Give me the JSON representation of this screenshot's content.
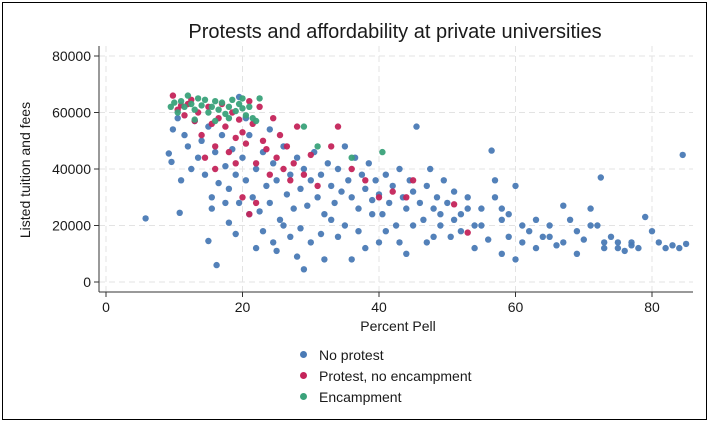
{
  "chart_data": {
    "type": "scatter",
    "title": "Protests and affordability at private universities",
    "xlabel": "Percent Pell",
    "ylabel": "Listed tuition and fees",
    "xlim": [
      0,
      85
    ],
    "ylim": [
      0,
      80000
    ],
    "x_ticks": [
      "0",
      "20",
      "40",
      "60",
      "80"
    ],
    "y_ticks": [
      "0",
      "20000",
      "40000",
      "60000",
      "80000"
    ],
    "grid": "horizontal and vertical dashed",
    "legend_position": "bottom",
    "series": [
      {
        "name": "No protest",
        "color": "#4a7ab5",
        "points": [
          [
            5.8,
            22500
          ],
          [
            9.2,
            45500
          ],
          [
            9.6,
            42500
          ],
          [
            9.8,
            54000
          ],
          [
            10.5,
            58000
          ],
          [
            11.0,
            36000
          ],
          [
            10.8,
            24500
          ],
          [
            11.5,
            52000
          ],
          [
            12.0,
            48000
          ],
          [
            12.5,
            40000
          ],
          [
            13.0,
            57000
          ],
          [
            13.5,
            44000
          ],
          [
            14.0,
            50000
          ],
          [
            14.5,
            38000
          ],
          [
            15.0,
            55000
          ],
          [
            15.5,
            30000
          ],
          [
            15.0,
            14500
          ],
          [
            16.0,
            46000
          ],
          [
            16.5,
            35000
          ],
          [
            16.2,
            6000
          ],
          [
            17.0,
            52000
          ],
          [
            17.5,
            41000
          ],
          [
            18.0,
            33000
          ],
          [
            18.0,
            21000
          ],
          [
            18.5,
            47000
          ],
          [
            19.0,
            38000
          ],
          [
            19.5,
            28000
          ],
          [
            20.0,
            44000
          ],
          [
            20.5,
            36000
          ],
          [
            21.0,
            52000
          ],
          [
            21.5,
            30000
          ],
          [
            22.0,
            40000
          ],
          [
            22.5,
            25000
          ],
          [
            22.0,
            12000
          ],
          [
            23.0,
            46000
          ],
          [
            23.5,
            34000
          ],
          [
            24.0,
            28000
          ],
          [
            24.5,
            42000
          ],
          [
            25.0,
            36000
          ],
          [
            25.5,
            22000
          ],
          [
            25.0,
            11000
          ],
          [
            26.0,
            48000
          ],
          [
            26.5,
            31000
          ],
          [
            27.0,
            38000
          ],
          [
            27.5,
            26000
          ],
          [
            28.0,
            44000
          ],
          [
            28.0,
            9000
          ],
          [
            28.5,
            33000
          ],
          [
            29.0,
            40000
          ],
          [
            29.5,
            27000
          ],
          [
            29.0,
            4500
          ],
          [
            30.0,
            36000
          ],
          [
            30.5,
            46000
          ],
          [
            31.0,
            30000
          ],
          [
            31.5,
            38000
          ],
          [
            32.0,
            24000
          ],
          [
            32.0,
            8000
          ],
          [
            32.5,
            42000
          ],
          [
            33.0,
            34000
          ],
          [
            33.5,
            28000
          ],
          [
            34.0,
            40000
          ],
          [
            34.5,
            32000
          ],
          [
            35.0,
            48000
          ],
          [
            35.0,
            20000
          ],
          [
            35.5,
            36000
          ],
          [
            36.0,
            30000
          ],
          [
            36.5,
            44000
          ],
          [
            37.0,
            26000
          ],
          [
            37.5,
            38000
          ],
          [
            38.0,
            33000
          ],
          [
            38.0,
            12000
          ],
          [
            38.5,
            42000
          ],
          [
            39.0,
            29000
          ],
          [
            39.5,
            36000
          ],
          [
            40.0,
            31000
          ],
          [
            40.5,
            24000
          ],
          [
            41.0,
            38000
          ],
          [
            41.5,
            28000
          ],
          [
            42.0,
            34000
          ],
          [
            42.5,
            20000
          ],
          [
            43.0,
            40000
          ],
          [
            43.5,
            30000
          ],
          [
            44.0,
            26000
          ],
          [
            44.5,
            36000
          ],
          [
            45.0,
            32000
          ],
          [
            45.5,
            55000
          ],
          [
            46.0,
            28000
          ],
          [
            46.5,
            22000
          ],
          [
            47.0,
            34000
          ],
          [
            47.5,
            40000
          ],
          [
            48.0,
            26000
          ],
          [
            48.5,
            30000
          ],
          [
            49.0,
            20000
          ],
          [
            49.5,
            36000
          ],
          [
            50.0,
            28000
          ],
          [
            50.5,
            16000
          ],
          [
            51.0,
            32000
          ],
          [
            52.0,
            24000
          ],
          [
            53.0,
            30000
          ],
          [
            54.0,
            20000
          ],
          [
            55.0,
            26000
          ],
          [
            56.0,
            15000
          ],
          [
            56.5,
            46500
          ],
          [
            57.0,
            36000
          ],
          [
            58.0,
            22000
          ],
          [
            58.0,
            10000
          ],
          [
            59.0,
            16000
          ],
          [
            60.0,
            34000
          ],
          [
            61.0,
            14000
          ],
          [
            62.0,
            18000
          ],
          [
            63.0,
            12000
          ],
          [
            64.0,
            16000
          ],
          [
            65.0,
            20000
          ],
          [
            66.0,
            13000
          ],
          [
            67.0,
            27000
          ],
          [
            68.0,
            22000
          ],
          [
            69.0,
            10000
          ],
          [
            70.0,
            15000
          ],
          [
            71.0,
            26000
          ],
          [
            72.0,
            20000
          ],
          [
            72.5,
            37000
          ],
          [
            73.0,
            12000
          ],
          [
            74.0,
            16000
          ],
          [
            75.0,
            14000
          ],
          [
            76.0,
            11000
          ],
          [
            77.0,
            13000
          ],
          [
            78.0,
            12000
          ],
          [
            79.0,
            23000
          ],
          [
            80.0,
            18000
          ],
          [
            81.0,
            14000
          ],
          [
            82.0,
            12000
          ],
          [
            83.0,
            13000
          ],
          [
            84.0,
            12000
          ],
          [
            84.5,
            45000
          ],
          [
            85.0,
            13500
          ],
          [
            19.5,
            65500
          ],
          [
            20.5,
            58000
          ],
          [
            24.0,
            54000
          ],
          [
            26.0,
            20000
          ],
          [
            27.0,
            16000
          ],
          [
            30.0,
            14000
          ],
          [
            34.0,
            16000
          ],
          [
            36.0,
            8000
          ],
          [
            40.0,
            14000
          ],
          [
            44.0,
            10000
          ],
          [
            48.0,
            16000
          ],
          [
            52.0,
            18000
          ],
          [
            54.0,
            12000
          ],
          [
            58.0,
            26000
          ],
          [
            60.0,
            8000
          ],
          [
            15.5,
            26000
          ],
          [
            17.5,
            28000
          ],
          [
            19.0,
            17000
          ],
          [
            21.0,
            24000
          ],
          [
            23.0,
            18000
          ],
          [
            24.5,
            14000
          ],
          [
            28.5,
            19000
          ],
          [
            31.5,
            17000
          ],
          [
            33.0,
            22000
          ],
          [
            37.0,
            18000
          ],
          [
            39.0,
            24000
          ],
          [
            41.0,
            18000
          ],
          [
            43.0,
            14000
          ],
          [
            45.0,
            20000
          ],
          [
            47.0,
            14000
          ],
          [
            49.0,
            24000
          ],
          [
            51.0,
            22000
          ],
          [
            53.0,
            26000
          ],
          [
            55.0,
            20000
          ],
          [
            57.0,
            30000
          ],
          [
            59.0,
            24000
          ],
          [
            61.0,
            20000
          ],
          [
            63.0,
            22000
          ],
          [
            65.0,
            16000
          ],
          [
            67.0,
            14000
          ],
          [
            69.0,
            18000
          ],
          [
            71.0,
            20000
          ],
          [
            73.0,
            14000
          ],
          [
            75.0,
            12000
          ],
          [
            77.0,
            14000
          ]
        ]
      },
      {
        "name": "Protest, no encampment",
        "color": "#c4245a",
        "points": [
          [
            9.8,
            66000
          ],
          [
            10.5,
            61000
          ],
          [
            11.0,
            62500
          ],
          [
            11.5,
            59000
          ],
          [
            12.0,
            63000
          ],
          [
            12.5,
            64500
          ],
          [
            13.0,
            57000
          ],
          [
            13.5,
            60000
          ],
          [
            14.0,
            52000
          ],
          [
            14.5,
            44000
          ],
          [
            15.0,
            62000
          ],
          [
            15.5,
            56000
          ],
          [
            16.0,
            48000
          ],
          [
            16.5,
            58000
          ],
          [
            17.0,
            63000
          ],
          [
            17.5,
            55000
          ],
          [
            18.0,
            46000
          ],
          [
            18.5,
            60000
          ],
          [
            19.0,
            51000
          ],
          [
            19.5,
            57500
          ],
          [
            20.0,
            53000
          ],
          [
            20.5,
            49000
          ],
          [
            21.0,
            64000
          ],
          [
            21.5,
            56000
          ],
          [
            22.0,
            42000
          ],
          [
            22.5,
            62000
          ],
          [
            23.0,
            50000
          ],
          [
            23.5,
            47000
          ],
          [
            24.0,
            38000
          ],
          [
            24.5,
            58000
          ],
          [
            25.0,
            44000
          ],
          [
            25.5,
            52000
          ],
          [
            26.0,
            40000
          ],
          [
            26.5,
            48000
          ],
          [
            27.0,
            36000
          ],
          [
            27.5,
            42000
          ],
          [
            28.0,
            55000
          ],
          [
            29.0,
            38000
          ],
          [
            30.0,
            45000
          ],
          [
            31.0,
            34000
          ],
          [
            33.0,
            48000
          ],
          [
            34.0,
            55000
          ],
          [
            36.0,
            40000
          ],
          [
            38.0,
            36000
          ],
          [
            40.0,
            30000
          ],
          [
            42.0,
            32000
          ],
          [
            44.0,
            30000
          ],
          [
            45.0,
            36000
          ],
          [
            51.0,
            27500
          ],
          [
            53.0,
            17500
          ],
          [
            19.0,
            42000
          ],
          [
            20.0,
            30000
          ],
          [
            21.0,
            24000
          ],
          [
            16.0,
            40000
          ],
          [
            22.0,
            28000
          ]
        ]
      },
      {
        "name": "Encampment",
        "color": "#3aa27a",
        "points": [
          [
            9.5,
            62000
          ],
          [
            10.0,
            63500
          ],
          [
            10.5,
            60000
          ],
          [
            11.0,
            64000
          ],
          [
            11.5,
            62000
          ],
          [
            12.0,
            66000
          ],
          [
            12.5,
            63000
          ],
          [
            13.0,
            61000
          ],
          [
            13.5,
            65000
          ],
          [
            14.0,
            62500
          ],
          [
            14.5,
            64500
          ],
          [
            15.0,
            60000
          ],
          [
            15.5,
            62000
          ],
          [
            16.0,
            64000
          ],
          [
            16.5,
            61000
          ],
          [
            17.0,
            63500
          ],
          [
            17.5,
            59500
          ],
          [
            18.0,
            62000
          ],
          [
            18.5,
            64500
          ],
          [
            19.0,
            60500
          ],
          [
            19.5,
            63000
          ],
          [
            20.0,
            61500
          ],
          [
            20.5,
            59000
          ],
          [
            21.0,
            62000
          ],
          [
            21.5,
            58000
          ],
          [
            22.0,
            57000
          ],
          [
            20.0,
            65000
          ],
          [
            22.5,
            65000
          ],
          [
            18.0,
            58000
          ],
          [
            16.0,
            57000
          ],
          [
            13.0,
            57500
          ],
          [
            29.0,
            55000
          ],
          [
            31.0,
            48000
          ],
          [
            36.0,
            44000
          ],
          [
            40.5,
            46000
          ]
        ]
      }
    ]
  }
}
